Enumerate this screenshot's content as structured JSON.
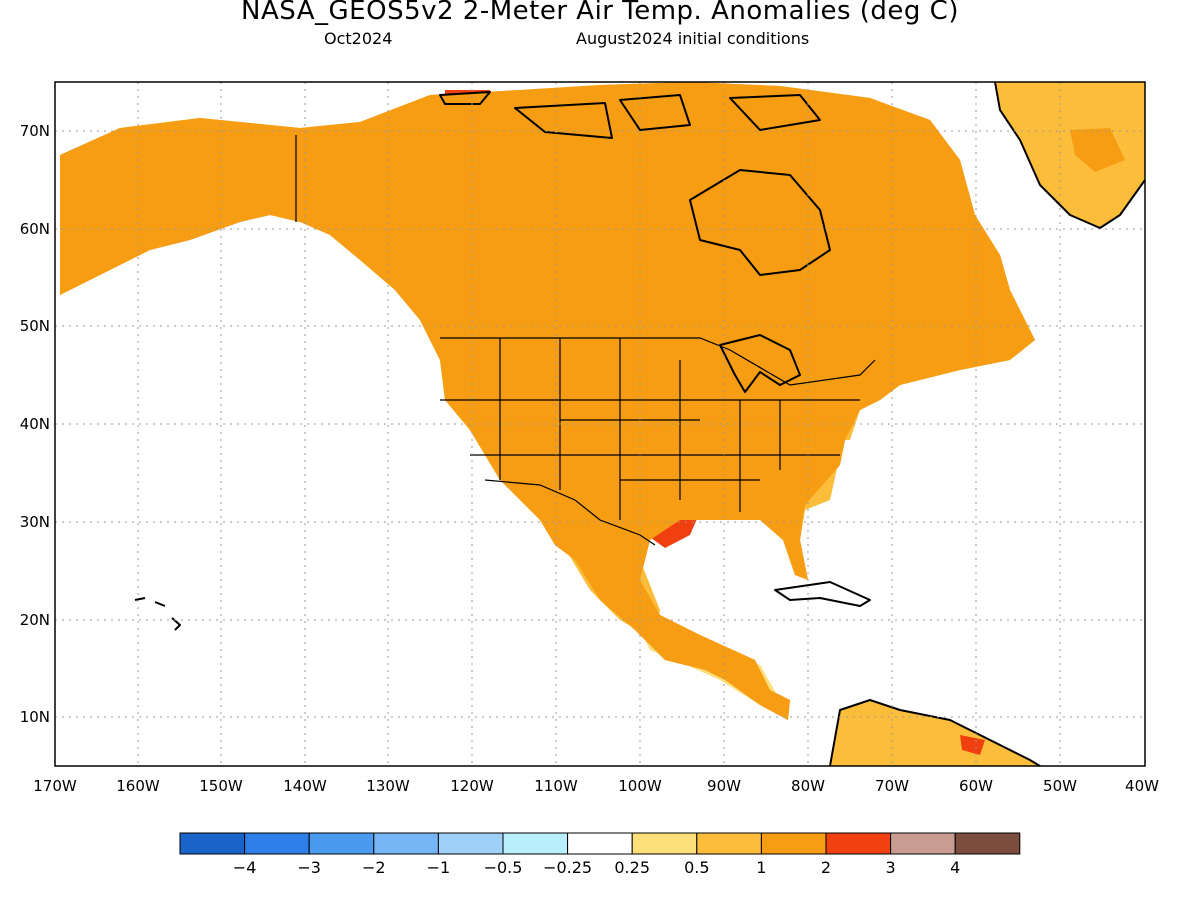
{
  "header": {
    "title": "NASA_GEOS5v2 2-Meter Air Temp. Anomalies (deg C)",
    "valid_month": "Oct2024",
    "initial_conditions": "August2024 initial conditions"
  },
  "axes": {
    "lat_labels": [
      "70N",
      "60N",
      "50N",
      "40N",
      "30N",
      "20N",
      "10N"
    ],
    "lon_labels": [
      "170W",
      "160W",
      "150W",
      "140W",
      "130W",
      "120W",
      "110W",
      "100W",
      "90W",
      "80W",
      "70W",
      "60W",
      "50W",
      "40W"
    ]
  },
  "colorbar": {
    "labels": [
      "−4",
      "−3",
      "−2",
      "−1",
      "−0.5",
      "−0.25",
      "0.25",
      "0.5",
      "1",
      "2",
      "3",
      "4"
    ],
    "colors": [
      "#1a63c9",
      "#2f7fe8",
      "#4a9bf0",
      "#76b6f5",
      "#9fd0f8",
      "#b9eefb",
      "#ffffff",
      "#fbe07a",
      "#fbbd3a",
      "#f79d14",
      "#f0400f",
      "#c89c90",
      "#7a4d3f"
    ]
  },
  "palette": {
    "land_base": "#f79d14",
    "ocean": "#ffffff"
  }
}
